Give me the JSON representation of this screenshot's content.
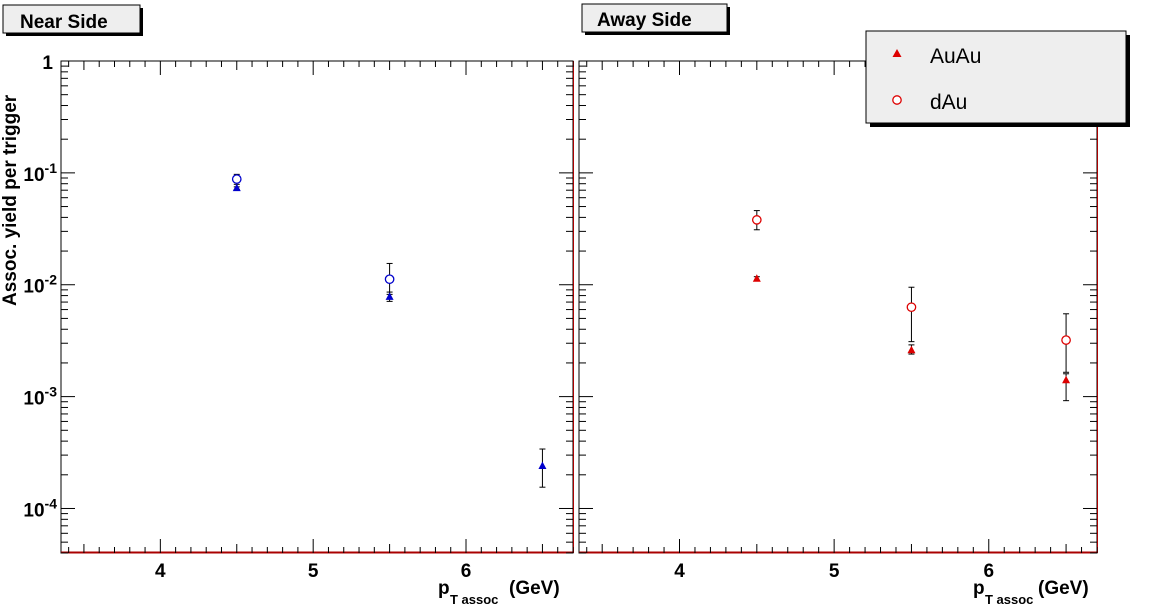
{
  "chart_data": [
    {
      "type": "scatter",
      "title": "Near Side",
      "ylabel": "Assoc. yield per trigger",
      "xlabel_main": "p",
      "xlabel_sub": "T assoc",
      "xlabel_unit": "(GeV)",
      "y_scale": "log",
      "xlim": [
        3.35,
        6.7
      ],
      "ylim": [
        4e-05,
        1
      ],
      "x_ticks": [
        "4",
        "5",
        "6"
      ],
      "y_ticks": [
        {
          "base": "1",
          "exp": ""
        },
        {
          "base": "10",
          "exp": "-1"
        },
        {
          "base": "10",
          "exp": "-2"
        },
        {
          "base": "10",
          "exp": "-3"
        },
        {
          "base": "10",
          "exp": "-4"
        }
      ],
      "series": [
        {
          "marker": "triangle",
          "color": "#0000cc",
          "points": [
            {
              "x": 4.5,
              "y": 0.073,
              "lo": 0.071,
              "hi": 0.075
            },
            {
              "x": 5.5,
              "y": 0.0078,
              "lo": 0.0071,
              "hi": 0.0086
            },
            {
              "x": 6.5,
              "y": 0.00024,
              "lo": 0.000155,
              "hi": 0.00034
            }
          ]
        },
        {
          "marker": "circle",
          "color": "#0000cc",
          "points": [
            {
              "x": 4.5,
              "y": 0.088,
              "lo": 0.079,
              "hi": 0.097
            },
            {
              "x": 5.5,
              "y": 0.0112,
              "lo": 0.0082,
              "hi": 0.0155
            }
          ]
        }
      ]
    },
    {
      "type": "scatter",
      "title": "Away Side",
      "xlabel_main": "p",
      "xlabel_sub": "T assoc",
      "xlabel_unit": "(GeV)",
      "y_scale": "log",
      "xlim": [
        3.35,
        6.7
      ],
      "ylim": [
        4e-05,
        1
      ],
      "x_ticks": [
        "4",
        "5",
        "6"
      ],
      "series": [
        {
          "name": "AuAu",
          "marker": "triangle",
          "color": "#dd0000",
          "points": [
            {
              "x": 4.5,
              "y": 0.0113,
              "lo": 0.0108,
              "hi": 0.0118
            },
            {
              "x": 5.5,
              "y": 0.0026,
              "lo": 0.0024,
              "hi": 0.0029
            },
            {
              "x": 6.5,
              "y": 0.0014,
              "lo": 0.00092,
              "hi": 0.0016
            }
          ]
        },
        {
          "name": "dAu",
          "marker": "circle",
          "color": "#dd0000",
          "points": [
            {
              "x": 4.5,
              "y": 0.038,
              "lo": 0.031,
              "hi": 0.046
            },
            {
              "x": 5.5,
              "y": 0.0063,
              "lo": 0.0031,
              "hi": 0.0095
            },
            {
              "x": 6.5,
              "y": 0.0032,
              "lo": 0.00165,
              "hi": 0.0055
            }
          ]
        }
      ],
      "legend": {
        "placement": "top-right",
        "entries": [
          "AuAu",
          "dAu"
        ]
      }
    }
  ]
}
